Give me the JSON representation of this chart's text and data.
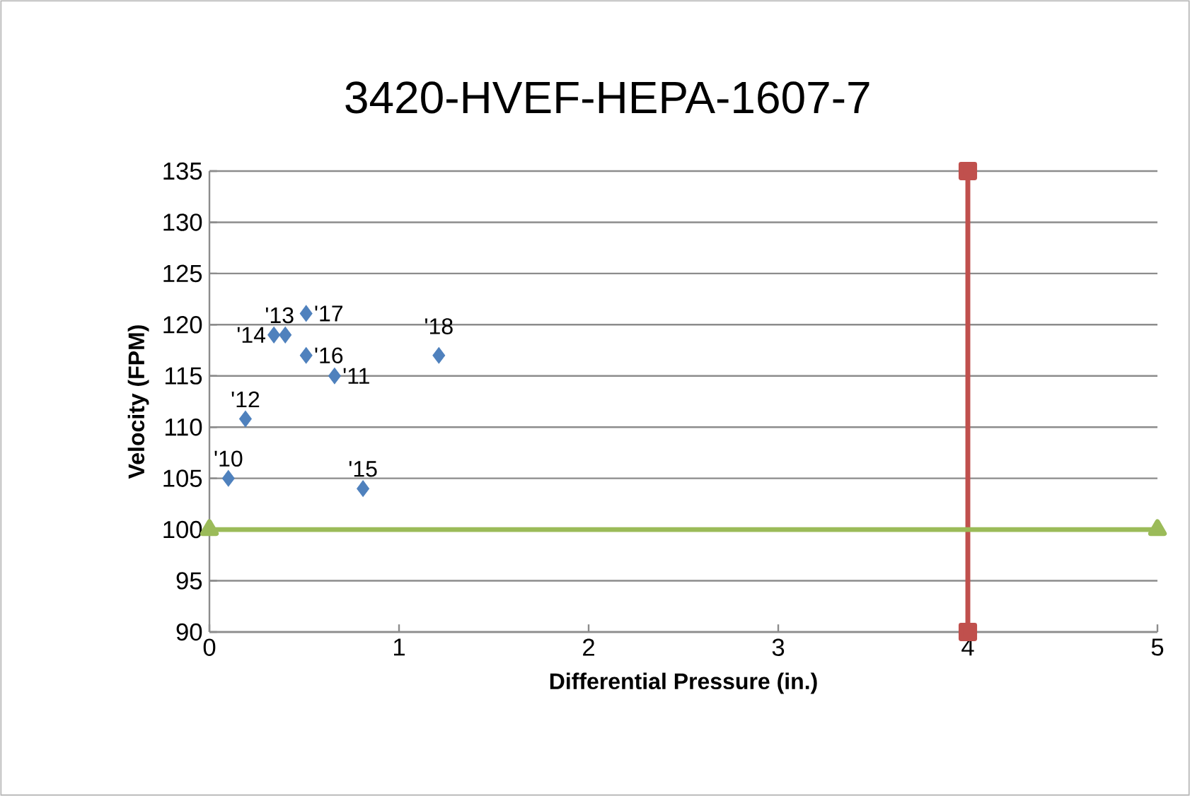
{
  "chart_data": {
    "type": "scatter",
    "title": "3420-HVEF-HEPA-1607-7",
    "xlabel": "Differential Pressure (in.)",
    "ylabel": "Velocity (FPM)",
    "xlim": [
      0,
      5
    ],
    "xticks": [
      0,
      1,
      2,
      3,
      4,
      5
    ],
    "ylim": [
      90,
      135
    ],
    "yticks": [
      90,
      95,
      100,
      105,
      110,
      115,
      120,
      125,
      130,
      135
    ],
    "grid": "y",
    "series": [
      {
        "marker": "diamond",
        "color": "#4f81bd",
        "x": [
          0.1,
          0.66,
          0.19,
          0.4,
          0.34,
          0.81,
          0.51,
          0.51,
          1.21
        ],
        "values": [
          105,
          115,
          110.8,
          119,
          119,
          104,
          117,
          121.1,
          117
        ]
      },
      {
        "type": "line",
        "marker": "square",
        "color": "#c0504d",
        "x": [
          4,
          4
        ],
        "values": [
          90,
          135
        ]
      },
      {
        "type": "line",
        "marker": "triangle",
        "color": "#9bbb59",
        "x": [
          0,
          5
        ],
        "values": [
          100,
          100
        ]
      }
    ],
    "annotations": [
      {
        "text": "'10",
        "x": 0.1,
        "y": 105
      },
      {
        "text": "'11",
        "x": 0.66,
        "y": 115
      },
      {
        "text": "'12",
        "x": 0.19,
        "y": 110.8
      },
      {
        "text": "'13",
        "x": 0.4,
        "y": 119
      },
      {
        "text": "'14",
        "x": 0.34,
        "y": 119
      },
      {
        "text": "'15",
        "x": 0.81,
        "y": 104
      },
      {
        "text": "'16",
        "x": 0.51,
        "y": 117
      },
      {
        "text": "'17",
        "x": 0.51,
        "y": 121.1
      },
      {
        "text": "'18",
        "x": 1.21,
        "y": 117
      }
    ]
  }
}
